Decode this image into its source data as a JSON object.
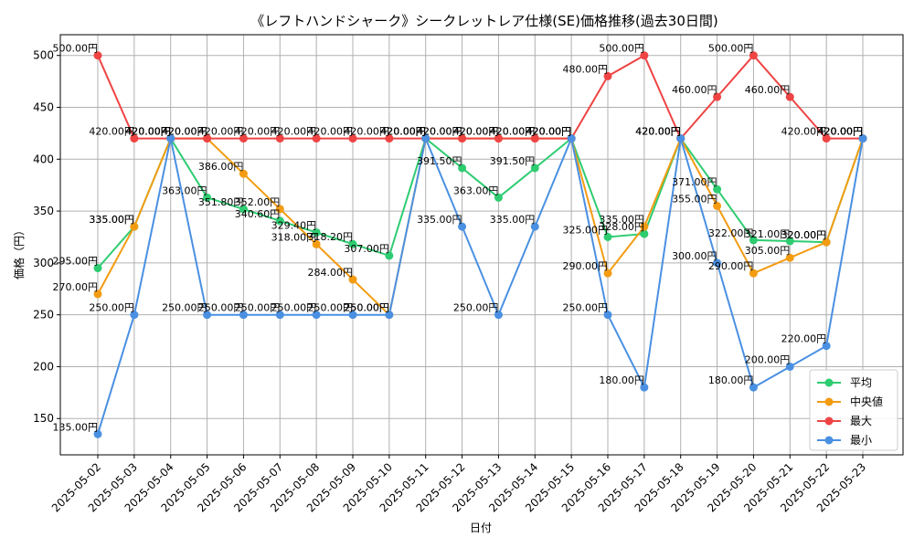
{
  "chart_data": {
    "type": "line",
    "title": "《レフトハンドシャーク》シークレットレア仕様(SE)価格推移(過去30日間)",
    "xlabel": "日付",
    "ylabel": "価格（円）",
    "ylim": [
      115,
      520
    ],
    "yticks": [
      150,
      200,
      250,
      300,
      350,
      400,
      450,
      500
    ],
    "grid": true,
    "legend_position": "lower-right",
    "label_suffix": "円",
    "categories": [
      "2025-05-02",
      "2025-05-03",
      "2025-05-04",
      "2025-05-05",
      "2025-05-06",
      "2025-05-07",
      "2025-05-08",
      "2025-05-09",
      "2025-05-10",
      "2025-05-11",
      "2025-05-12",
      "2025-05-13",
      "2025-05-14",
      "2025-05-15",
      "2025-05-16",
      "2025-05-17",
      "2025-05-18",
      "2025-05-19",
      "2025-05-20",
      "2025-05-21",
      "2025-05-22",
      "2025-05-23"
    ],
    "series": [
      {
        "name": "平均",
        "color": "#2ecc71",
        "values": [
          295,
          335,
          420,
          363,
          351.8,
          340.6,
          329.4,
          318.2,
          307,
          420,
          391.5,
          363,
          391.5,
          420,
          325,
          328,
          420,
          371,
          322,
          321,
          320,
          420
        ]
      },
      {
        "name": "中央値",
        "color": "#f39c12",
        "values": [
          270,
          335,
          420,
          420,
          386,
          352,
          318,
          284,
          250,
          420,
          420,
          420,
          420,
          420,
          290,
          335,
          420,
          355,
          290,
          305,
          320,
          420
        ]
      },
      {
        "name": "最大",
        "color": "#ef4444",
        "values": [
          500,
          420,
          420,
          420,
          420,
          420,
          420,
          420,
          420,
          420,
          420,
          420,
          420,
          420,
          480,
          500,
          420,
          460,
          500,
          460,
          420,
          420
        ]
      },
      {
        "name": "最小",
        "color": "#4a90e2",
        "values": [
          135,
          250,
          420,
          250,
          250,
          250,
          250,
          250,
          250,
          420,
          335,
          250,
          335,
          420,
          250,
          180,
          420,
          300,
          180,
          200,
          220,
          420
        ]
      }
    ]
  }
}
